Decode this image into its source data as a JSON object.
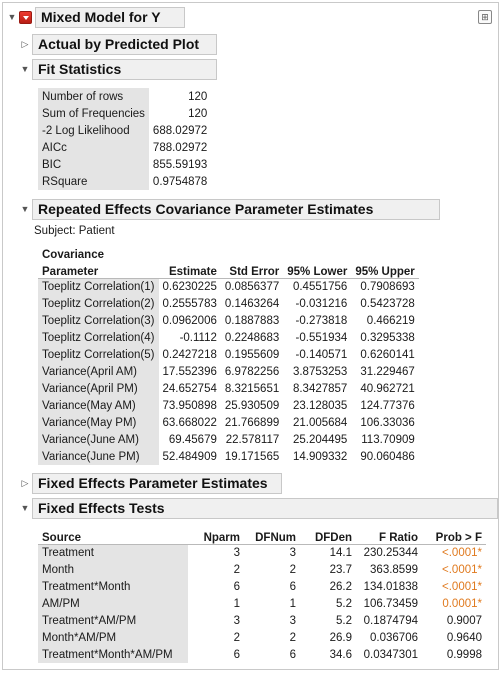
{
  "report": {
    "title": "Mixed Model for Y"
  },
  "sections": {
    "actual_by_predicted": {
      "title": "Actual by Predicted Plot"
    },
    "fit_statistics": {
      "title": "Fit Statistics",
      "rows": [
        {
          "label": "Number of rows",
          "value": "120"
        },
        {
          "label": "Sum of Frequencies",
          "value": "120"
        },
        {
          "label": "-2 Log Likelihood",
          "value": "688.02972"
        },
        {
          "label": "AICc",
          "value": "788.02972"
        },
        {
          "label": "BIC",
          "value": "855.59193"
        },
        {
          "label": "RSquare",
          "value": "0.9754878"
        }
      ]
    },
    "repeated_effects": {
      "title": "Repeated Effects Covariance Parameter Estimates",
      "subject": "Subject: Patient",
      "headers": {
        "param_line1": "Covariance",
        "param_line2": "Parameter",
        "estimate": "Estimate",
        "std_error": "Std Error",
        "lower": "95% Lower",
        "upper": "95% Upper"
      },
      "rows": [
        {
          "param": "Toeplitz Correlation(1)",
          "estimate": "0.6230225",
          "std_error": "0.0856377",
          "lower": "0.4551756",
          "upper": "0.7908693"
        },
        {
          "param": "Toeplitz Correlation(2)",
          "estimate": "0.2555783",
          "std_error": "0.1463264",
          "lower": "-0.031216",
          "upper": "0.5423728"
        },
        {
          "param": "Toeplitz Correlation(3)",
          "estimate": "0.0962006",
          "std_error": "0.1887883",
          "lower": "-0.273818",
          "upper": "0.466219"
        },
        {
          "param": "Toeplitz Correlation(4)",
          "estimate": "-0.1112",
          "std_error": "0.2248683",
          "lower": "-0.551934",
          "upper": "0.3295338"
        },
        {
          "param": "Toeplitz Correlation(5)",
          "estimate": "0.2427218",
          "std_error": "0.1955609",
          "lower": "-0.140571",
          "upper": "0.6260141"
        },
        {
          "param": "Variance(April AM)",
          "estimate": "17.552396",
          "std_error": "6.9782256",
          "lower": "3.8753253",
          "upper": "31.229467"
        },
        {
          "param": "Variance(April PM)",
          "estimate": "24.652754",
          "std_error": "8.3215651",
          "lower": "8.3427857",
          "upper": "40.962721"
        },
        {
          "param": "Variance(May AM)",
          "estimate": "73.950898",
          "std_error": "25.930509",
          "lower": "23.128035",
          "upper": "124.77376"
        },
        {
          "param": "Variance(May PM)",
          "estimate": "63.668022",
          "std_error": "21.766899",
          "lower": "21.005684",
          "upper": "106.33036"
        },
        {
          "param": "Variance(June AM)",
          "estimate": "69.45679",
          "std_error": "22.578117",
          "lower": "25.204495",
          "upper": "113.70909"
        },
        {
          "param": "Variance(June PM)",
          "estimate": "52.484909",
          "std_error": "19.171565",
          "lower": "14.909332",
          "upper": "90.060486"
        }
      ]
    },
    "fixed_params": {
      "title": "Fixed Effects Parameter Estimates"
    },
    "fixed_tests": {
      "title": "Fixed Effects Tests",
      "headers": {
        "source": "Source",
        "nparm": "Nparm",
        "dfnum": "DFNum",
        "dfden": "DFDen",
        "fratio": "F Ratio",
        "prob": "Prob > F"
      },
      "rows": [
        {
          "source": "Treatment",
          "nparm": "3",
          "dfnum": "3",
          "dfden": "14.1",
          "fratio": "230.25344",
          "prob": "<.0001*"
        },
        {
          "source": "Month",
          "nparm": "2",
          "dfnum": "2",
          "dfden": "23.7",
          "fratio": "363.8599",
          "prob": "<.0001*"
        },
        {
          "source": "Treatment*Month",
          "nparm": "6",
          "dfnum": "6",
          "dfden": "26.2",
          "fratio": "134.01838",
          "prob": "<.0001*"
        },
        {
          "source": "AM/PM",
          "nparm": "1",
          "dfnum": "1",
          "dfden": "5.2",
          "fratio": "106.73459",
          "prob": "0.0001*"
        },
        {
          "source": "Treatment*AM/PM",
          "nparm": "3",
          "dfnum": "3",
          "dfden": "5.2",
          "fratio": "0.1874794",
          "prob": "0.9007"
        },
        {
          "source": "Month*AM/PM",
          "nparm": "2",
          "dfnum": "2",
          "dfden": "26.9",
          "fratio": "0.036706",
          "prob": "0.9640"
        },
        {
          "source": "Treatment*Month*AM/PM",
          "nparm": "6",
          "dfnum": "6",
          "dfden": "34.6",
          "fratio": "0.0347301",
          "prob": "0.9998"
        }
      ]
    }
  },
  "colors": {
    "significant": "#e07a1f",
    "menu_button": "#d62a1e"
  }
}
